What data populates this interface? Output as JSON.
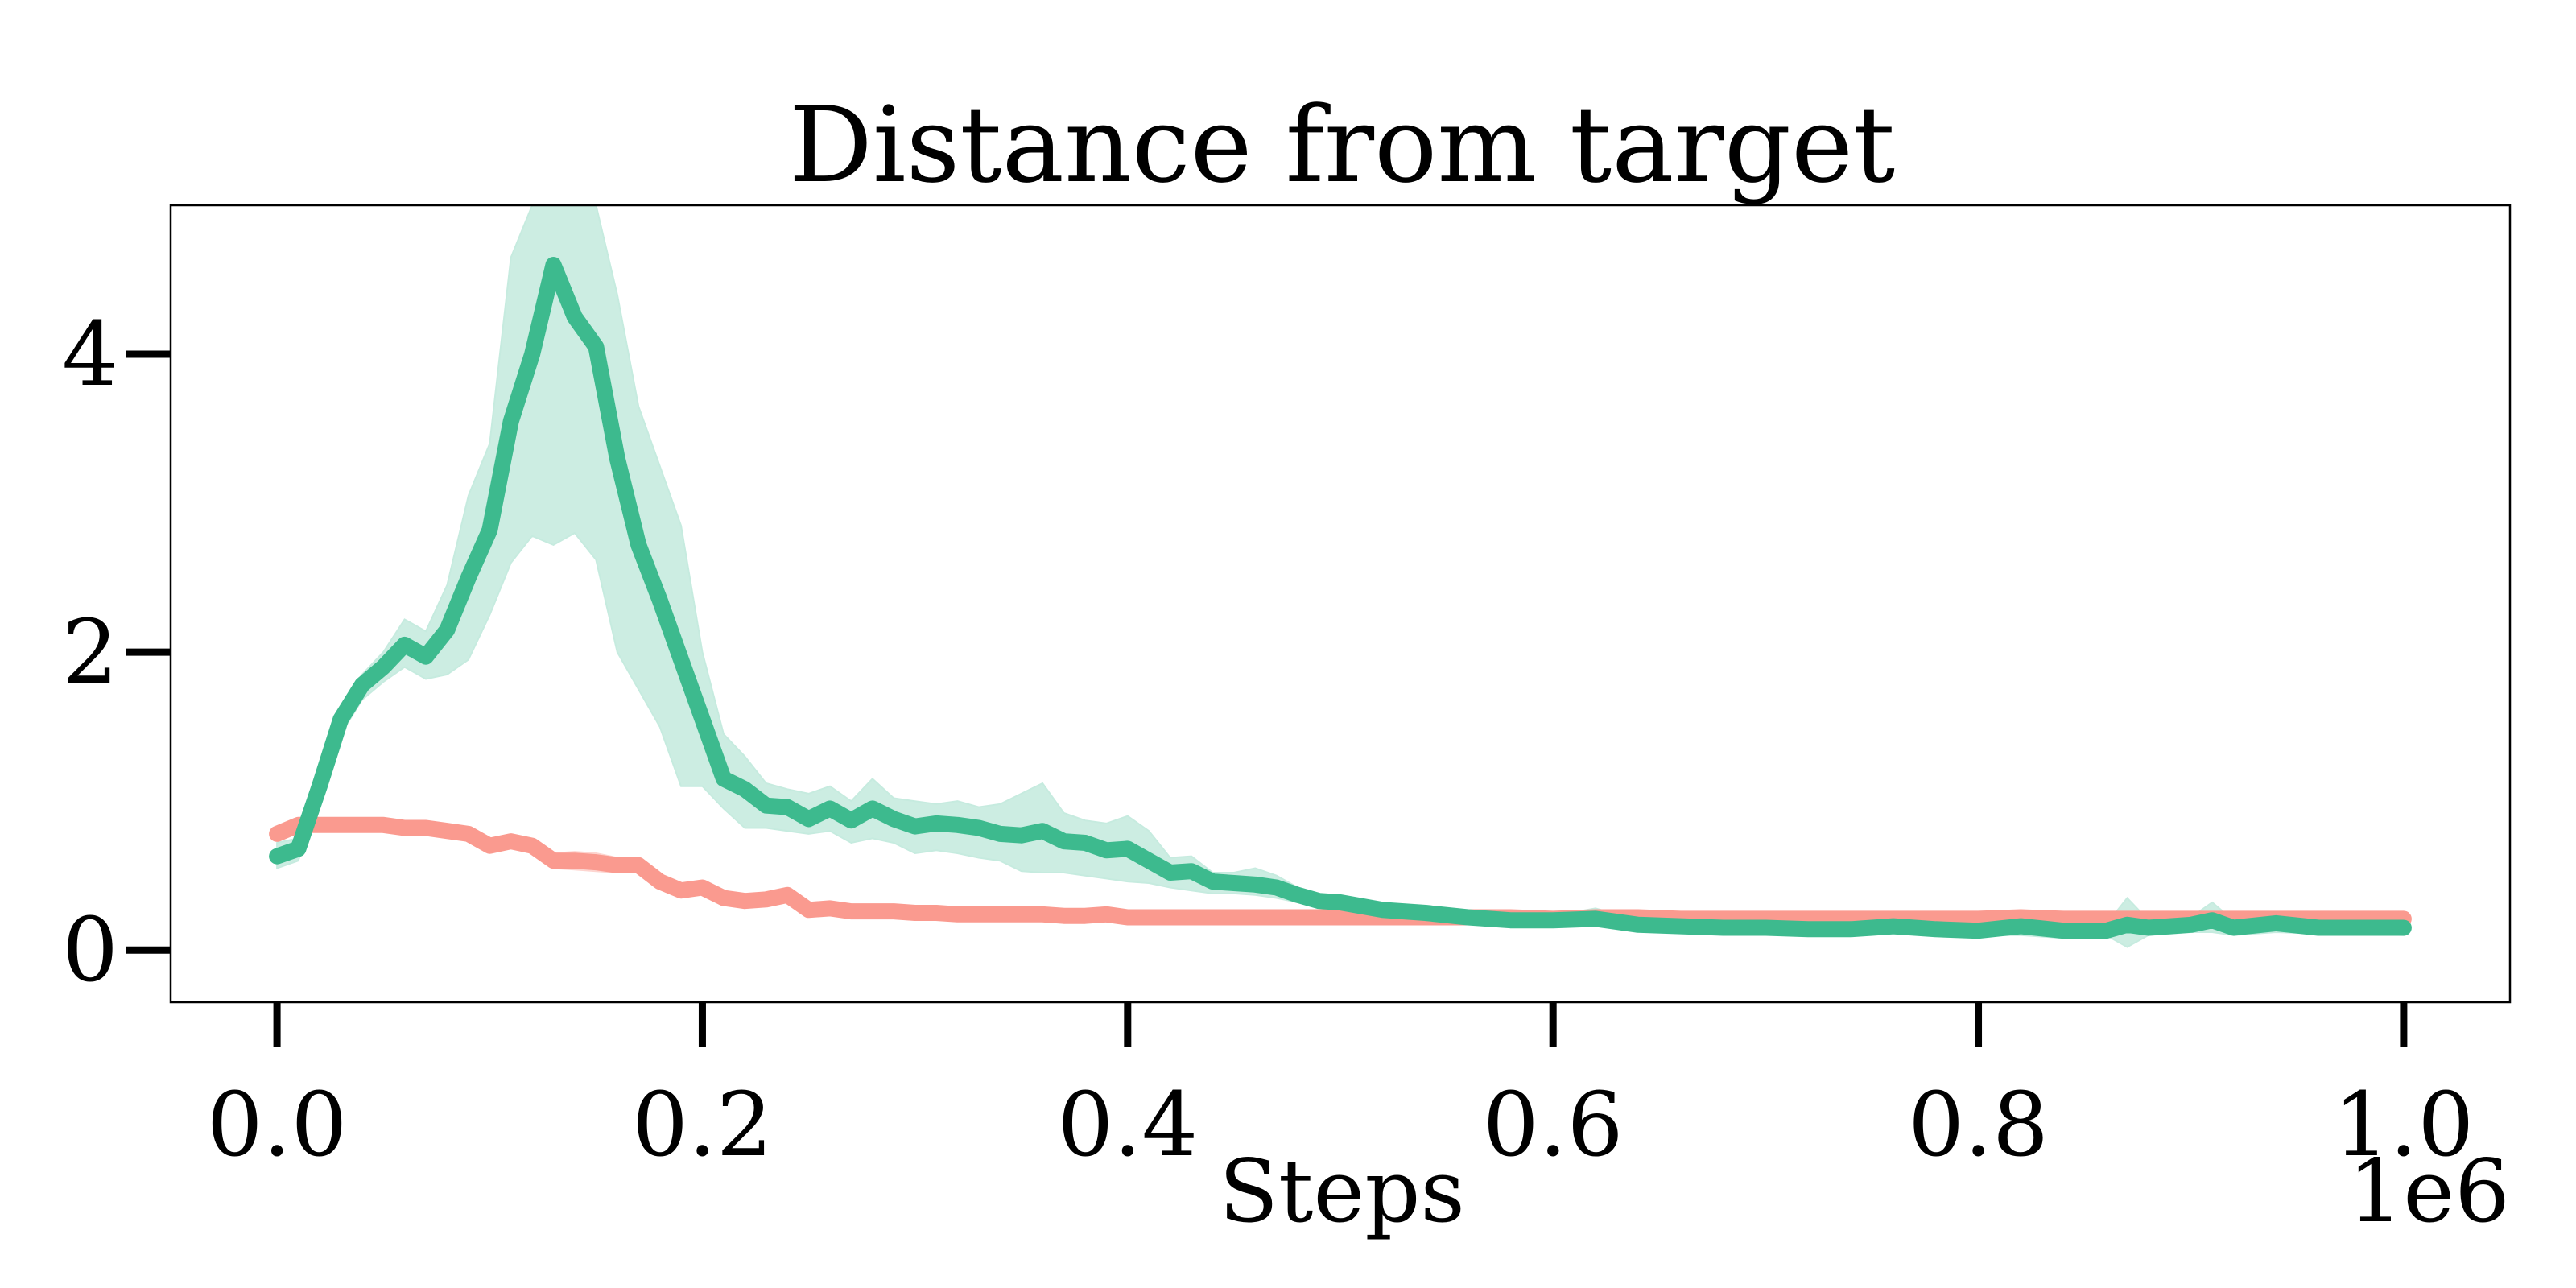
{
  "chart_data": {
    "type": "line",
    "title": "Distance from target",
    "xlabel": "Steps",
    "ylabel": "",
    "x_offset_label": "1e6",
    "xlim": [
      -0.05,
      1.05
    ],
    "ylim": [
      -0.35,
      5.0
    ],
    "x_ticks": [
      0.0,
      0.2,
      0.4,
      0.6,
      0.8,
      1.0
    ],
    "x_tick_labels": [
      "0.0",
      "0.2",
      "0.4",
      "0.6",
      "0.8",
      "1.0"
    ],
    "y_ticks": [
      0,
      2,
      4
    ],
    "y_tick_labels": [
      "0",
      "2",
      "4"
    ],
    "grid": false,
    "legend": "none",
    "x": [
      0.0,
      0.01,
      0.02,
      0.03,
      0.04,
      0.05,
      0.06,
      0.07,
      0.08,
      0.09,
      0.1,
      0.11,
      0.12,
      0.13,
      0.14,
      0.15,
      0.16,
      0.17,
      0.18,
      0.19,
      0.2,
      0.21,
      0.22,
      0.23,
      0.24,
      0.25,
      0.26,
      0.27,
      0.28,
      0.29,
      0.3,
      0.31,
      0.32,
      0.33,
      0.34,
      0.35,
      0.36,
      0.37,
      0.38,
      0.39,
      0.4,
      0.41,
      0.42,
      0.43,
      0.44,
      0.45,
      0.46,
      0.47,
      0.48,
      0.49,
      0.5,
      0.52,
      0.54,
      0.56,
      0.58,
      0.6,
      0.62,
      0.64,
      0.66,
      0.68,
      0.7,
      0.72,
      0.74,
      0.75,
      0.76,
      0.78,
      0.8,
      0.82,
      0.84,
      0.86,
      0.87,
      0.88,
      0.9,
      0.91,
      0.92,
      0.94,
      0.96,
      0.98,
      1.0
    ],
    "series": [
      {
        "color": "#3dba8e",
        "band_color": "#c6ebdf",
        "values": [
          0.63,
          0.68,
          1.1,
          1.55,
          1.78,
          1.9,
          2.05,
          1.97,
          2.15,
          2.5,
          2.82,
          3.55,
          4.0,
          4.6,
          4.25,
          4.05,
          3.3,
          2.72,
          2.35,
          1.95,
          1.55,
          1.15,
          1.08,
          0.97,
          0.96,
          0.88,
          0.95,
          0.87,
          0.95,
          0.88,
          0.83,
          0.85,
          0.84,
          0.82,
          0.78,
          0.77,
          0.8,
          0.73,
          0.72,
          0.67,
          0.68,
          0.6,
          0.52,
          0.53,
          0.46,
          0.45,
          0.44,
          0.42,
          0.37,
          0.33,
          0.32,
          0.27,
          0.25,
          0.22,
          0.2,
          0.2,
          0.21,
          0.17,
          0.16,
          0.15,
          0.15,
          0.14,
          0.14,
          0.15,
          0.16,
          0.14,
          0.13,
          0.16,
          0.13,
          0.13,
          0.17,
          0.15,
          0.17,
          0.2,
          0.15,
          0.18,
          0.15,
          0.15,
          0.15
        ],
        "lower": [
          0.55,
          0.6,
          1.0,
          1.45,
          1.68,
          1.8,
          1.9,
          1.82,
          1.85,
          1.95,
          2.25,
          2.6,
          2.78,
          2.72,
          2.8,
          2.62,
          2.0,
          1.75,
          1.5,
          1.1,
          1.1,
          0.95,
          0.82,
          0.82,
          0.8,
          0.78,
          0.8,
          0.72,
          0.75,
          0.72,
          0.65,
          0.67,
          0.65,
          0.62,
          0.6,
          0.53,
          0.52,
          0.52,
          0.5,
          0.48,
          0.46,
          0.45,
          0.42,
          0.4,
          0.38,
          0.38,
          0.37,
          0.35,
          0.32,
          0.3,
          0.28,
          0.24,
          0.22,
          0.19,
          0.18,
          0.17,
          0.17,
          0.14,
          0.13,
          0.13,
          0.12,
          0.12,
          0.12,
          0.12,
          0.12,
          0.11,
          0.1,
          0.1,
          0.08,
          0.1,
          0.02,
          0.1,
          0.12,
          0.12,
          0.1,
          0.12,
          0.11,
          0.11,
          0.1
        ],
        "upper": [
          0.72,
          0.75,
          1.2,
          1.62,
          1.85,
          2.0,
          2.22,
          2.14,
          2.45,
          3.05,
          3.4,
          4.65,
          5.0,
          5.0,
          5.0,
          5.0,
          4.4,
          3.65,
          3.25,
          2.85,
          2.0,
          1.45,
          1.3,
          1.12,
          1.08,
          1.05,
          1.1,
          1.0,
          1.15,
          1.02,
          1.0,
          0.98,
          1.0,
          0.96,
          0.98,
          1.05,
          1.12,
          0.92,
          0.87,
          0.85,
          0.9,
          0.8,
          0.62,
          0.63,
          0.52,
          0.52,
          0.55,
          0.5,
          0.42,
          0.37,
          0.35,
          0.3,
          0.28,
          0.25,
          0.22,
          0.23,
          0.28,
          0.2,
          0.2,
          0.18,
          0.18,
          0.17,
          0.17,
          0.18,
          0.22,
          0.18,
          0.17,
          0.22,
          0.18,
          0.17,
          0.35,
          0.2,
          0.22,
          0.32,
          0.2,
          0.23,
          0.19,
          0.19,
          0.2
        ]
      },
      {
        "color": "#fa9a8f",
        "band_color": "#fdd5d0",
        "values": [
          0.78,
          0.84,
          0.84,
          0.84,
          0.84,
          0.84,
          0.82,
          0.82,
          0.8,
          0.78,
          0.7,
          0.73,
          0.7,
          0.6,
          0.6,
          0.59,
          0.57,
          0.57,
          0.46,
          0.4,
          0.42,
          0.35,
          0.33,
          0.34,
          0.37,
          0.27,
          0.28,
          0.26,
          0.26,
          0.26,
          0.25,
          0.25,
          0.24,
          0.24,
          0.24,
          0.24,
          0.24,
          0.23,
          0.23,
          0.24,
          0.22,
          0.22,
          0.22,
          0.22,
          0.22,
          0.22,
          0.22,
          0.22,
          0.22,
          0.22,
          0.22,
          0.22,
          0.22,
          0.22,
          0.22,
          0.21,
          0.22,
          0.22,
          0.21,
          0.21,
          0.21,
          0.21,
          0.21,
          0.21,
          0.21,
          0.21,
          0.21,
          0.22,
          0.21,
          0.21,
          0.21,
          0.21,
          0.21,
          0.21,
          0.21,
          0.21,
          0.21,
          0.21,
          0.21
        ],
        "lower": [
          0.74,
          0.8,
          0.8,
          0.8,
          0.8,
          0.8,
          0.78,
          0.78,
          0.76,
          0.74,
          0.66,
          0.69,
          0.66,
          0.55,
          0.54,
          0.53,
          0.52,
          0.52,
          0.42,
          0.36,
          0.38,
          0.31,
          0.29,
          0.3,
          0.33,
          0.24,
          0.25,
          0.23,
          0.23,
          0.23,
          0.22,
          0.22,
          0.21,
          0.21,
          0.21,
          0.21,
          0.21,
          0.2,
          0.2,
          0.21,
          0.19,
          0.19,
          0.19,
          0.19,
          0.19,
          0.19,
          0.19,
          0.19,
          0.19,
          0.19,
          0.19,
          0.19,
          0.19,
          0.19,
          0.19,
          0.18,
          0.19,
          0.19,
          0.18,
          0.18,
          0.18,
          0.18,
          0.18,
          0.18,
          0.18,
          0.18,
          0.18,
          0.19,
          0.18,
          0.18,
          0.18,
          0.18,
          0.18,
          0.18,
          0.18,
          0.18,
          0.18,
          0.18,
          0.18
        ],
        "upper": [
          0.82,
          0.88,
          0.88,
          0.88,
          0.88,
          0.88,
          0.86,
          0.86,
          0.84,
          0.82,
          0.74,
          0.77,
          0.74,
          0.65,
          0.66,
          0.65,
          0.62,
          0.62,
          0.5,
          0.44,
          0.46,
          0.39,
          0.37,
          0.38,
          0.41,
          0.3,
          0.31,
          0.29,
          0.29,
          0.29,
          0.28,
          0.28,
          0.27,
          0.27,
          0.27,
          0.27,
          0.27,
          0.26,
          0.26,
          0.27,
          0.25,
          0.25,
          0.25,
          0.25,
          0.25,
          0.25,
          0.25,
          0.25,
          0.25,
          0.25,
          0.25,
          0.25,
          0.25,
          0.25,
          0.25,
          0.24,
          0.25,
          0.25,
          0.24,
          0.24,
          0.24,
          0.24,
          0.24,
          0.24,
          0.24,
          0.24,
          0.24,
          0.25,
          0.24,
          0.24,
          0.24,
          0.24,
          0.24,
          0.24,
          0.24,
          0.24,
          0.24,
          0.24,
          0.24
        ]
      }
    ]
  }
}
